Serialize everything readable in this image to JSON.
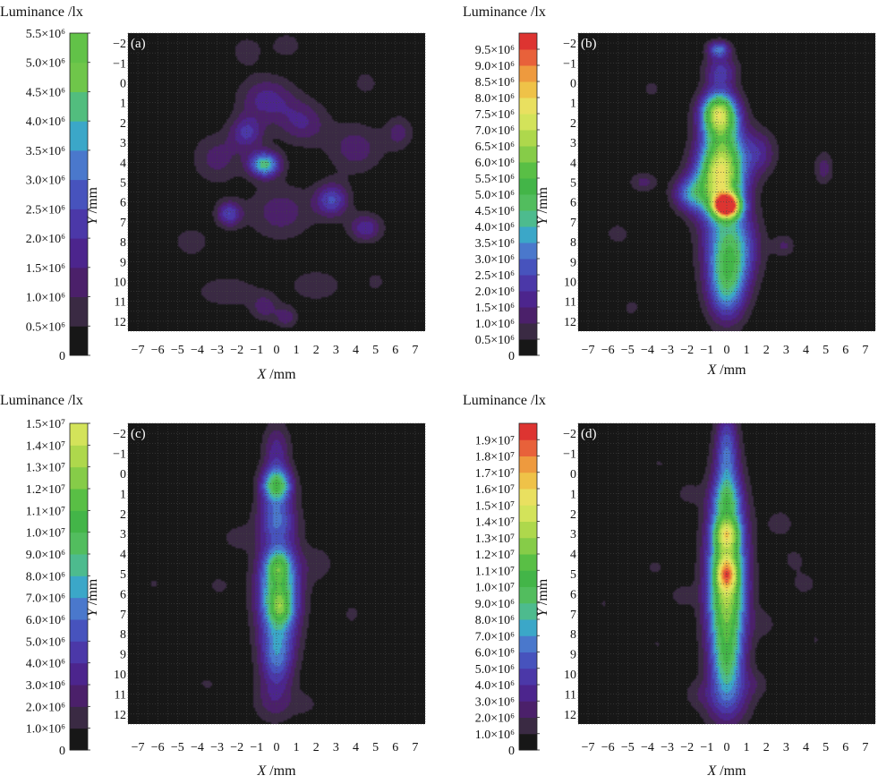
{
  "figure": {
    "background": "#ffffff",
    "plot_background": "#171717",
    "grid_color": "#444444"
  },
  "chart_data": [
    {
      "type": "heatmap",
      "panel_label": "(a)",
      "colorbar_title": "Luminance /lx",
      "colorbar_ticks": [
        "0",
        "0.5×10⁶",
        "1.0×10⁶",
        "1.5×10⁶",
        "2.0×10⁶",
        "2.5×10⁶",
        "3.0×10⁶",
        "3.5×10⁶",
        "4.0×10⁶",
        "4.5×10⁶",
        "5.0×10⁶",
        "5.5×10⁶"
      ],
      "colorbar_colors": [
        "#171717",
        "#3a2a43",
        "#4b206a",
        "#4c258d",
        "#4b38a8",
        "#4753bd",
        "#4a78cc",
        "#3ba7c8",
        "#52bd7e",
        "#6fc64a",
        "#62c248"
      ],
      "value_range": [
        0,
        5500000
      ],
      "xlabel": "X /mm",
      "ylabel": "Y /mm",
      "x_ticks": [
        -7,
        -6,
        -5,
        -4,
        -3,
        -2,
        -1,
        0,
        1,
        2,
        3,
        4,
        5,
        6,
        7
      ],
      "y_ticks": [
        -2,
        -1,
        0,
        1,
        2,
        3,
        4,
        5,
        6,
        7,
        8,
        9,
        10,
        11,
        12
      ],
      "xlim": [
        -7.5,
        7.5
      ],
      "ylim": [
        -2.5,
        12.5
      ],
      "grid": true,
      "peaks": [
        {
          "x": -0.6,
          "y": 4.1,
          "value": 4300000,
          "sx": 0.55,
          "sy": 0.45
        },
        {
          "x": -1.5,
          "y": 2.5,
          "value": 2000000,
          "sx": 0.6,
          "sy": 0.6
        },
        {
          "x": -2.4,
          "y": 6.6,
          "value": 2400000,
          "sx": 0.45,
          "sy": 0.45
        },
        {
          "x": 2.8,
          "y": 5.9,
          "value": 2500000,
          "sx": 0.6,
          "sy": 0.6
        },
        {
          "x": -0.5,
          "y": 0.8,
          "value": 1700000,
          "sx": 1.0,
          "sy": 0.8
        },
        {
          "x": 1.3,
          "y": 2.0,
          "value": 1500000,
          "sx": 0.9,
          "sy": 0.8
        },
        {
          "x": 4.5,
          "y": 7.3,
          "value": 1900000,
          "sx": 0.6,
          "sy": 0.5
        },
        {
          "x": 0.2,
          "y": 6.5,
          "value": 1300000,
          "sx": 1.2,
          "sy": 1.0
        },
        {
          "x": -3.0,
          "y": 3.8,
          "value": 1200000,
          "sx": 0.9,
          "sy": 0.9
        },
        {
          "x": 4.0,
          "y": 3.3,
          "value": 1300000,
          "sx": 1.0,
          "sy": 0.9
        },
        {
          "x": 6.2,
          "y": 2.5,
          "value": 1200000,
          "sx": 0.5,
          "sy": 0.6
        },
        {
          "x": 4.5,
          "y": 0.0,
          "value": 900000,
          "sx": 0.4,
          "sy": 0.4
        },
        {
          "x": -0.6,
          "y": 11.3,
          "value": 1200000,
          "sx": 0.5,
          "sy": 0.5
        },
        {
          "x": 0.5,
          "y": 11.8,
          "value": 1300000,
          "sx": 0.4,
          "sy": 0.4
        },
        {
          "x": -2.5,
          "y": 10.5,
          "value": 900000,
          "sx": 1.2,
          "sy": 0.6
        },
        {
          "x": 2.0,
          "y": 10.2,
          "value": 900000,
          "sx": 1.0,
          "sy": 0.6
        },
        {
          "x": -4.3,
          "y": 8.0,
          "value": 1000000,
          "sx": 0.6,
          "sy": 0.5
        },
        {
          "x": -1.5,
          "y": -1.6,
          "value": 800000,
          "sx": 0.6,
          "sy": 0.6
        },
        {
          "x": 0.5,
          "y": -1.9,
          "value": 800000,
          "sx": 0.6,
          "sy": 0.5
        },
        {
          "x": 5.0,
          "y": 10.0,
          "value": 900000,
          "sx": 0.3,
          "sy": 0.3
        }
      ]
    },
    {
      "type": "heatmap",
      "panel_label": "(b)",
      "colorbar_title": "Luminance /lx",
      "colorbar_ticks": [
        "0",
        "0.5×10⁶",
        "1.0×10⁶",
        "1.5×10⁶",
        "2.0×10⁶",
        "2.5×10⁶",
        "3.0×10⁶",
        "3.5×10⁶",
        "4.0×10⁶",
        "4.5×10⁶",
        "5.0×10⁶",
        "5.5×10⁶",
        "6.0×10⁶",
        "6.5×10⁶",
        "7.0×10⁶",
        "7.5×10⁶",
        "8.0×10⁶",
        "8.5×10⁶",
        "9.0×10⁶",
        "9.5×10⁶"
      ],
      "colorbar_colors": [
        "#171717",
        "#3a2a43",
        "#4b206a",
        "#4c258d",
        "#4b38a8",
        "#4753bd",
        "#4a78cc",
        "#3ba7c8",
        "#4dbb8e",
        "#52bd5e",
        "#43b548",
        "#59bf45",
        "#86cc48",
        "#aed84c",
        "#d3e35a",
        "#e9e060",
        "#efc248",
        "#ee9a3e",
        "#e8613a",
        "#dd3431"
      ],
      "value_range": [
        0,
        9500000
      ],
      "xlabel": "X /mm",
      "ylabel": "Y /mm",
      "x_ticks": [
        -7,
        -6,
        -5,
        -4,
        -3,
        -2,
        -1,
        0,
        1,
        2,
        3,
        4,
        5,
        6,
        7
      ],
      "y_ticks": [
        -2,
        -1,
        0,
        1,
        2,
        3,
        4,
        5,
        6,
        7,
        8,
        9,
        10,
        11,
        12
      ],
      "xlim": [
        -7.5,
        7.5
      ],
      "ylim": [
        -2.5,
        12.5
      ],
      "grid": true,
      "peaks": [
        {
          "x": 0.0,
          "y": 6.2,
          "value": 8000000,
          "sx": 0.45,
          "sy": 0.4
        },
        {
          "x": -0.4,
          "y": 5.2,
          "value": 5000000,
          "sx": 0.9,
          "sy": 1.2
        },
        {
          "x": -0.4,
          "y": 1.5,
          "value": 5800000,
          "sx": 0.65,
          "sy": 0.75
        },
        {
          "x": -0.2,
          "y": 3.5,
          "value": 4300000,
          "sx": 0.8,
          "sy": 1.3
        },
        {
          "x": 0.2,
          "y": 8.3,
          "value": 4000000,
          "sx": 0.9,
          "sy": 1.3
        },
        {
          "x": 0.0,
          "y": 10.4,
          "value": 3200000,
          "sx": 0.7,
          "sy": 1.2
        },
        {
          "x": -1.9,
          "y": 5.6,
          "value": 2300000,
          "sx": 0.6,
          "sy": 0.6
        },
        {
          "x": -0.4,
          "y": -1.7,
          "value": 2800000,
          "sx": 0.4,
          "sy": 0.3
        },
        {
          "x": -0.3,
          "y": -0.6,
          "value": 2000000,
          "sx": 0.6,
          "sy": 0.6
        },
        {
          "x": 1.7,
          "y": 3.5,
          "value": 1500000,
          "sx": 0.6,
          "sy": 0.8
        },
        {
          "x": 4.9,
          "y": 4.3,
          "value": 1200000,
          "sx": 0.35,
          "sy": 0.6
        },
        {
          "x": -4.2,
          "y": 5.0,
          "value": 1100000,
          "sx": 0.5,
          "sy": 0.35
        },
        {
          "x": -5.5,
          "y": 7.6,
          "value": 900000,
          "sx": 0.4,
          "sy": 0.35
        },
        {
          "x": -4.8,
          "y": 11.3,
          "value": 900000,
          "sx": 0.25,
          "sy": 0.25
        },
        {
          "x": 2.9,
          "y": 8.2,
          "value": 1000000,
          "sx": 0.4,
          "sy": 0.4
        },
        {
          "x": -3.8,
          "y": 0.3,
          "value": 800000,
          "sx": 0.3,
          "sy": 0.3
        }
      ]
    },
    {
      "type": "heatmap",
      "panel_label": "(c)",
      "colorbar_title": "Luminance /lx",
      "colorbar_ticks": [
        "0",
        "1.0×10⁶",
        "2.0×10⁶",
        "3.0×10⁶",
        "4.0×10⁶",
        "5.0×10⁶",
        "6.0×10⁶",
        "7.0×10⁶",
        "8.0×10⁶",
        "9.0×10⁶",
        "1.0×10⁷",
        "1.1×10⁷",
        "1.2×10⁷",
        "1.3×10⁷",
        "1.4×10⁷",
        "1.5×10⁷"
      ],
      "colorbar_colors": [
        "#171717",
        "#3a2a43",
        "#4b206a",
        "#4c258d",
        "#4b38a8",
        "#4753bd",
        "#4a78cc",
        "#3ba7c8",
        "#4dbb8e",
        "#52bd5e",
        "#43b548",
        "#59bf45",
        "#86cc48",
        "#aed84c",
        "#d3e35a"
      ],
      "value_range": [
        0,
        15000000
      ],
      "xlabel": "X /mm",
      "ylabel": "Y /mm",
      "x_ticks": [
        -7,
        -6,
        -5,
        -4,
        -3,
        -2,
        -1,
        0,
        1,
        2,
        3,
        4,
        5,
        6,
        7
      ],
      "y_ticks": [
        -2,
        -1,
        0,
        1,
        2,
        3,
        4,
        5,
        6,
        7,
        8,
        9,
        10,
        11,
        12
      ],
      "xlim": [
        -7.5,
        7.5
      ],
      "ylim": [
        -2.5,
        12.5
      ],
      "grid": true,
      "peaks": [
        {
          "x": 0.1,
          "y": 5.9,
          "value": 10500000,
          "sx": 0.75,
          "sy": 1.9
        },
        {
          "x": 0.0,
          "y": 0.6,
          "value": 9500000,
          "sx": 0.55,
          "sy": 0.6
        },
        {
          "x": 0.1,
          "y": 4.6,
          "value": 3500000,
          "sx": 0.4,
          "sy": 0.5
        },
        {
          "x": 0.2,
          "y": 6.7,
          "value": 3300000,
          "sx": 0.4,
          "sy": 0.5
        },
        {
          "x": 0.0,
          "y": -1.1,
          "value": 3500000,
          "sx": 0.5,
          "sy": 1.0
        },
        {
          "x": 0.0,
          "y": 2.2,
          "value": 4500000,
          "sx": 0.7,
          "sy": 0.7
        },
        {
          "x": 0.0,
          "y": 9.3,
          "value": 4500000,
          "sx": 0.6,
          "sy": 1.0
        },
        {
          "x": -0.1,
          "y": 11.4,
          "value": 2300000,
          "sx": 0.8,
          "sy": 0.8
        },
        {
          "x": -2.0,
          "y": 3.2,
          "value": 1500000,
          "sx": 0.6,
          "sy": 0.5
        },
        {
          "x": -2.9,
          "y": 5.6,
          "value": 1200000,
          "sx": 0.6,
          "sy": 0.5
        },
        {
          "x": 2.2,
          "y": 4.5,
          "value": 1400000,
          "sx": 0.6,
          "sy": 0.7
        },
        {
          "x": 3.8,
          "y": 7.0,
          "value": 1300000,
          "sx": 0.35,
          "sy": 0.45
        },
        {
          "x": -6.2,
          "y": 5.5,
          "value": 1100000,
          "sx": 0.3,
          "sy": 0.4
        },
        {
          "x": -5.8,
          "y": 9.2,
          "value": 1000000,
          "sx": 0.35,
          "sy": 0.35
        },
        {
          "x": -3.5,
          "y": 10.5,
          "value": 1100000,
          "sx": 0.6,
          "sy": 0.4
        },
        {
          "x": 1.6,
          "y": 11.5,
          "value": 1000000,
          "sx": 0.5,
          "sy": 0.5
        },
        {
          "x": 5.0,
          "y": -1.6,
          "value": 800000,
          "sx": 0.2,
          "sy": 0.2
        }
      ]
    },
    {
      "type": "heatmap",
      "panel_label": "(d)",
      "colorbar_title": "Luminance /lx",
      "colorbar_ticks": [
        "0",
        "1.0×10⁶",
        "2.0×10⁶",
        "3.0×10⁶",
        "4.0×10⁶",
        "5.0×10⁶",
        "6.0×10⁶",
        "7.0×10⁶",
        "8.0×10⁶",
        "9.0×10⁶",
        "1.0×10⁷",
        "1.1×10⁷",
        "1.2×10⁷",
        "1.3×10⁷",
        "1.4×10⁷",
        "1.5×10⁷",
        "1.6×10⁷",
        "1.7×10⁷",
        "1.8×10⁷",
        "1.9×10⁷"
      ],
      "colorbar_colors": [
        "#171717",
        "#3a2a43",
        "#4b206a",
        "#4c258d",
        "#4b38a8",
        "#4753bd",
        "#4a78cc",
        "#3ba7c8",
        "#4dbb8e",
        "#52bd5e",
        "#43b548",
        "#59bf45",
        "#86cc48",
        "#aed84c",
        "#d3e35a",
        "#e9e060",
        "#efc248",
        "#ee9a3e",
        "#e8613a",
        "#dd3431"
      ],
      "value_range": [
        0,
        19000000
      ],
      "xlabel": "X /mm",
      "ylabel": "Y /mm",
      "x_ticks": [
        -7,
        -6,
        -5,
        -4,
        -3,
        -2,
        -1,
        0,
        1,
        2,
        3,
        4,
        5,
        6,
        7
      ],
      "y_ticks": [
        -2,
        -1,
        0,
        1,
        2,
        3,
        4,
        5,
        6,
        7,
        8,
        9,
        10,
        11,
        12
      ],
      "xlim": [
        -7.5,
        7.5
      ],
      "ylim": [
        -2.5,
        12.5
      ],
      "grid": true,
      "peaks": [
        {
          "x": 0.0,
          "y": 5.6,
          "value": 13000000,
          "sx": 0.7,
          "sy": 3.2
        },
        {
          "x": 0.0,
          "y": 3.0,
          "value": 5500000,
          "sx": 0.45,
          "sy": 0.5
        },
        {
          "x": 0.0,
          "y": 5.0,
          "value": 5500000,
          "sx": 0.35,
          "sy": 0.55
        },
        {
          "x": 0.0,
          "y": 1.3,
          "value": 3500000,
          "sx": 0.5,
          "sy": 0.8
        },
        {
          "x": 0.0,
          "y": 9.5,
          "value": 3000000,
          "sx": 0.5,
          "sy": 1.0
        },
        {
          "x": 0.0,
          "y": -1.2,
          "value": 4500000,
          "sx": 0.4,
          "sy": 1.5
        },
        {
          "x": 0.0,
          "y": 11.3,
          "value": 2500000,
          "sx": 0.9,
          "sy": 0.9
        },
        {
          "x": -3.4,
          "y": -0.5,
          "value": 1000000,
          "sx": 0.35,
          "sy": 0.35
        },
        {
          "x": -2.0,
          "y": 1.0,
          "value": 1200000,
          "sx": 0.5,
          "sy": 0.5
        },
        {
          "x": 2.7,
          "y": 2.5,
          "value": 1400000,
          "sx": 0.6,
          "sy": 0.6
        },
        {
          "x": -3.6,
          "y": 4.7,
          "value": 1200000,
          "sx": 0.4,
          "sy": 0.35
        },
        {
          "x": -2.3,
          "y": 6.1,
          "value": 1300000,
          "sx": 0.5,
          "sy": 0.5
        },
        {
          "x": 3.4,
          "y": 4.3,
          "value": 1300000,
          "sx": 0.45,
          "sy": 0.45
        },
        {
          "x": 3.9,
          "y": 5.5,
          "value": 1400000,
          "sx": 0.5,
          "sy": 0.45
        },
        {
          "x": 2.0,
          "y": 7.5,
          "value": 1100000,
          "sx": 0.5,
          "sy": 0.6
        },
        {
          "x": -6.2,
          "y": 6.5,
          "value": 1000000,
          "sx": 0.3,
          "sy": 0.35
        },
        {
          "x": -3.5,
          "y": 8.5,
          "value": 1000000,
          "sx": 0.3,
          "sy": 0.3
        },
        {
          "x": 4.5,
          "y": 8.3,
          "value": 1000000,
          "sx": 0.3,
          "sy": 0.3
        },
        {
          "x": 1.5,
          "y": 10.5,
          "value": 1100000,
          "sx": 0.6,
          "sy": 0.5
        },
        {
          "x": -1.6,
          "y": 11.0,
          "value": 1000000,
          "sx": 0.5,
          "sy": 0.5
        }
      ]
    }
  ]
}
